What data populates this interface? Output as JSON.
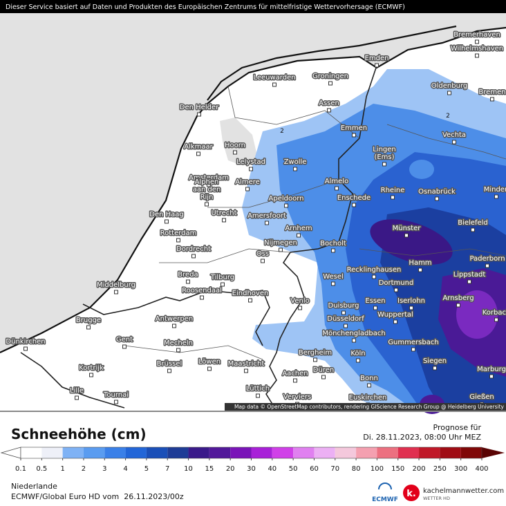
{
  "header": {
    "notice": "Dieser Service basiert auf Daten und Produkten des Europäischen Zentrums für mittelfristige Wettervorhersage (ECMWF)"
  },
  "map": {
    "attribution": "Map data © OpenStreetMap contributors, rendering GIScience Research Group @ Heidelberg University",
    "contour_labels": [
      "2",
      "2"
    ],
    "cities": [
      {
        "lines": [
          "Bremerhaven"
        ]
      },
      {
        "lines": [
          "Wilhelmshaven"
        ]
      },
      {
        "lines": [
          "Emden"
        ]
      },
      {
        "lines": [
          "Oldenburg"
        ]
      },
      {
        "lines": [
          "Bremen"
        ]
      },
      {
        "lines": [
          "Leeuwarden"
        ]
      },
      {
        "lines": [
          "Groningen"
        ]
      },
      {
        "lines": [
          "Den Helder"
        ]
      },
      {
        "lines": [
          "Assen"
        ]
      },
      {
        "lines": [
          "Emmen"
        ]
      },
      {
        "lines": [
          "Vechta"
        ]
      },
      {
        "lines": [
          "Alkmaar"
        ]
      },
      {
        "lines": [
          "Hoorn"
        ]
      },
      {
        "lines": [
          "Lingen",
          "(Ems)"
        ]
      },
      {
        "lines": [
          "Lelystad"
        ]
      },
      {
        "lines": [
          "Zwolle"
        ]
      },
      {
        "lines": [
          "Amsterdam"
        ]
      },
      {
        "lines": [
          "Almere"
        ]
      },
      {
        "lines": [
          "Almelo"
        ]
      },
      {
        "lines": [
          "Rheine"
        ]
      },
      {
        "lines": [
          "Osnabrück"
        ]
      },
      {
        "lines": [
          "Minden"
        ]
      },
      {
        "lines": [
          "Apeldoorn"
        ]
      },
      {
        "lines": [
          "Enschede"
        ]
      },
      {
        "lines": [
          "Alphen",
          "aan den",
          "Rijn"
        ]
      },
      {
        "lines": [
          "Den Haag"
        ]
      },
      {
        "lines": [
          "Utrecht"
        ]
      },
      {
        "lines": [
          "Amersfoort"
        ]
      },
      {
        "lines": [
          "Bielefeld"
        ]
      },
      {
        "lines": [
          "Arnhem"
        ]
      },
      {
        "lines": [
          "Münster"
        ]
      },
      {
        "lines": [
          "Rotterdam"
        ]
      },
      {
        "lines": [
          "Nijmegen"
        ]
      },
      {
        "lines": [
          "Bocholt"
        ]
      },
      {
        "lines": [
          "Dordrecht"
        ]
      },
      {
        "lines": [
          "Oss"
        ]
      },
      {
        "lines": [
          "Paderborn"
        ]
      },
      {
        "lines": [
          "Hamm"
        ]
      },
      {
        "lines": [
          "Recklinghausen"
        ]
      },
      {
        "lines": [
          "Lippstadt"
        ]
      },
      {
        "lines": [
          "Breda"
        ]
      },
      {
        "lines": [
          "Tilburg"
        ]
      },
      {
        "lines": [
          "Wesel"
        ]
      },
      {
        "lines": [
          "Dortmund"
        ]
      },
      {
        "lines": [
          "Middelburg"
        ]
      },
      {
        "lines": [
          "Roosendaal"
        ]
      },
      {
        "lines": [
          "Eindhoven"
        ]
      },
      {
        "lines": [
          "Arnsberg"
        ]
      },
      {
        "lines": [
          "Venlo"
        ]
      },
      {
        "lines": [
          "Duisburg"
        ]
      },
      {
        "lines": [
          "Essen"
        ]
      },
      {
        "lines": [
          "Iserlohn"
        ]
      },
      {
        "lines": [
          "Korbach"
        ]
      },
      {
        "lines": [
          "Brugge"
        ]
      },
      {
        "lines": [
          "Antwerpen"
        ]
      },
      {
        "lines": [
          "Düsseldorf"
        ]
      },
      {
        "lines": [
          "Wuppertal"
        ]
      },
      {
        "lines": [
          "Mönchengladbach"
        ]
      },
      {
        "lines": [
          "Gent"
        ]
      },
      {
        "lines": [
          "Dünkirchen"
        ]
      },
      {
        "lines": [
          "Mecheln"
        ]
      },
      {
        "lines": [
          "Gummersbach"
        ]
      },
      {
        "lines": [
          "Bergheim"
        ]
      },
      {
        "lines": [
          "Köln"
        ]
      },
      {
        "lines": [
          "Siegen"
        ]
      },
      {
        "lines": [
          "Kortrijk"
        ]
      },
      {
        "lines": [
          "Brüssel"
        ]
      },
      {
        "lines": [
          "Löwen"
        ]
      },
      {
        "lines": [
          "Maastricht"
        ]
      },
      {
        "lines": [
          "Aachen"
        ]
      },
      {
        "lines": [
          "Düren"
        ]
      },
      {
        "lines": [
          "Marburg"
        ]
      },
      {
        "lines": [
          "Bonn"
        ]
      },
      {
        "lines": [
          "Lille"
        ]
      },
      {
        "lines": [
          "Lüttich"
        ]
      },
      {
        "lines": [
          "Tournai"
        ]
      },
      {
        "lines": [
          "Verviers"
        ]
      },
      {
        "lines": [
          "Euskirchen"
        ]
      },
      {
        "lines": [
          "Gießen"
        ]
      }
    ]
  },
  "legend": {
    "title": "Schneehöhe (cm)",
    "forecast_label": "Prognose für",
    "forecast_time": "Di. 28.11.2023, 08:00 Uhr MEZ",
    "levels": [
      0.1,
      0.5,
      1,
      2,
      3,
      4,
      5,
      7,
      10,
      15,
      20,
      30,
      40,
      50,
      60,
      70,
      80,
      100,
      150,
      200,
      250,
      300,
      400
    ],
    "colors": [
      "#ffffff",
      "#ffffff",
      "#eef0f8",
      "#7fb2f5",
      "#5a9cf0",
      "#3a80e8",
      "#2266d8",
      "#1a4fb8",
      "#1e3c96",
      "#3a1a8a",
      "#52189a",
      "#7a14b8",
      "#a820d8",
      "#d040e8",
      "#e080f0",
      "#ecb0f4",
      "#f4c8dc",
      "#f4a0b0",
      "#ec7080",
      "#e03050",
      "#c01828",
      "#a00c14",
      "#800808",
      "#5a0404"
    ]
  },
  "footer": {
    "region": "Niederlande",
    "model": "ECMWF/Global Euro HD vom  26.11.2023/00z",
    "logo_ecmwf": "ECMWF",
    "logo_letter": "k.",
    "logo_site": "kachelmannwetter.com",
    "logo_sub": "WETTER HD"
  }
}
